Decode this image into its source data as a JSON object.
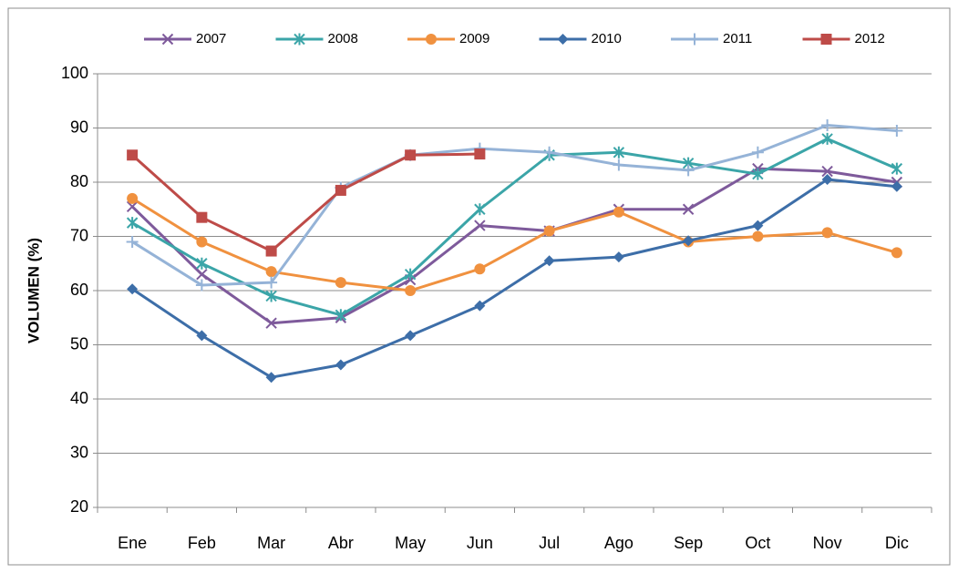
{
  "chart_data": {
    "type": "line",
    "y_label": "VOLUMEN (%)",
    "categories": [
      "Ene",
      "Feb",
      "Mar",
      "Abr",
      "May",
      "Jun",
      "Jul",
      "Ago",
      "Sep",
      "Oct",
      "Nov",
      "Dic"
    ],
    "series": [
      {
        "name": "2007",
        "color": "#7e5a9b",
        "marker": "x",
        "values": [
          75.5,
          63,
          54,
          55,
          62,
          72,
          71,
          75,
          75,
          82.5,
          82,
          80
        ]
      },
      {
        "name": "2008",
        "color": "#3ba5a8",
        "marker": "star",
        "values": [
          72.5,
          65,
          59,
          55.5,
          63,
          75,
          85,
          85.5,
          83.5,
          81.5,
          88,
          82.5
        ]
      },
      {
        "name": "2009",
        "color": "#f0913f",
        "marker": "circle",
        "values": [
          77,
          69,
          63.5,
          61.5,
          60,
          64,
          71,
          74.5,
          69,
          70,
          70.7,
          67
        ]
      },
      {
        "name": "2010",
        "color": "#3d6ea8",
        "marker": "diamond",
        "values": [
          60.3,
          51.7,
          44,
          46.3,
          51.7,
          57.2,
          65.5,
          66.2,
          69.2,
          72,
          80.5,
          79.2
        ]
      },
      {
        "name": "2011",
        "color": "#95b3d7",
        "marker": "plus",
        "values": [
          69,
          61,
          61.5,
          79,
          85,
          86.2,
          85.5,
          83.2,
          82.2,
          85.5,
          90.5,
          89.5
        ]
      },
      {
        "name": "2012",
        "color": "#be4b48",
        "marker": "square",
        "values": [
          85,
          73.5,
          67.3,
          78.5,
          85,
          85.2,
          null,
          null,
          null,
          null,
          null,
          null
        ]
      }
    ],
    "ylim": [
      20,
      100
    ],
    "yticks": [
      20,
      30,
      40,
      50,
      60,
      70,
      80,
      90,
      100
    ],
    "grid": true,
    "legend": "top"
  }
}
